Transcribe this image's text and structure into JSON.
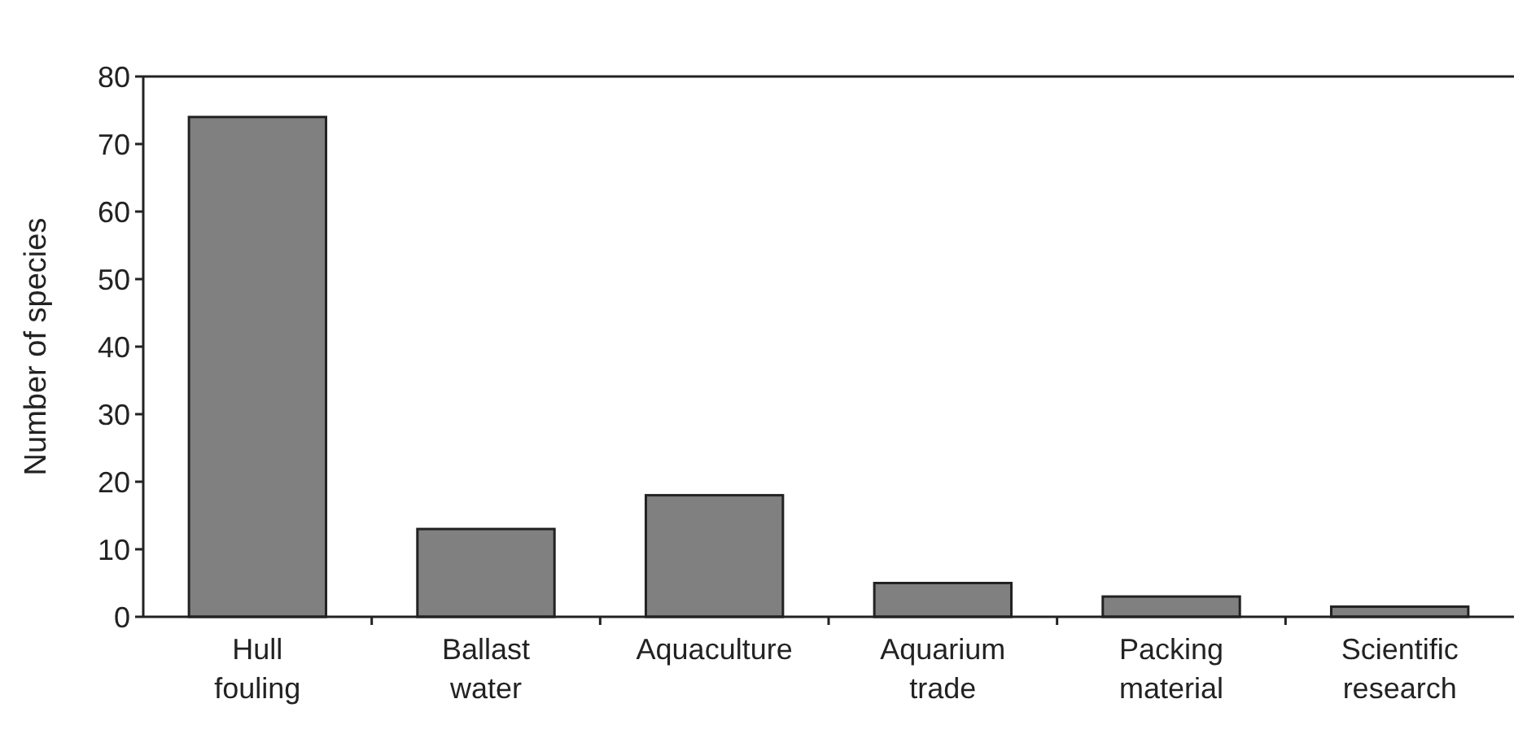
{
  "chart_data": {
    "type": "bar",
    "ylabel": "Number of species",
    "categories": [
      "Hull fouling",
      "Ballast water",
      "Aquaculture",
      "Aquarium trade",
      "Packing material",
      "Scientific research"
    ],
    "values": [
      74,
      13,
      18,
      5,
      3,
      1.5
    ],
    "color": "#808080",
    "ylim": [
      0,
      80
    ],
    "yticks": [
      0,
      10,
      20,
      30,
      40,
      50,
      60,
      70,
      80
    ],
    "grid": false
  }
}
